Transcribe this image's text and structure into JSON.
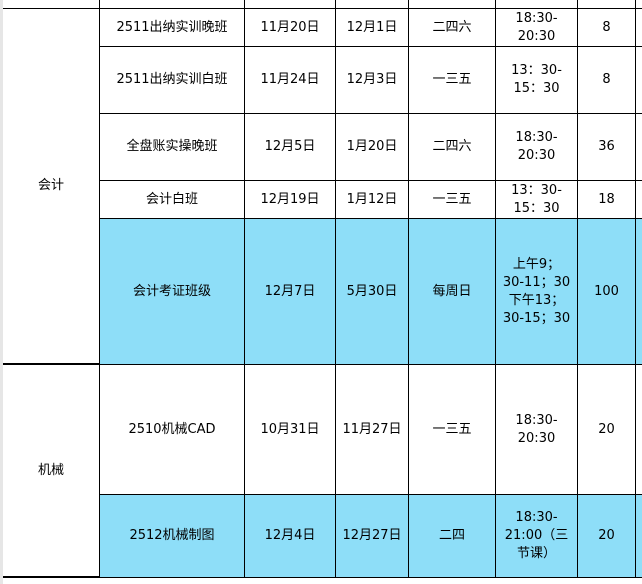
{
  "highlight_color": "#8edef8",
  "groups": [
    {
      "category": "会计",
      "rows": [
        {
          "name": "2511出纳实训晚班",
          "start": "11月20日",
          "end": "12月1日",
          "days": "二四六",
          "time": "18:30-\n20:30",
          "count": "8",
          "highlight": false
        },
        {
          "name": "2511出纳实训白班",
          "start": "11月24日",
          "end": "12月3日",
          "days": "一三五",
          "time": "13：30-\n15：30",
          "count": "8",
          "highlight": false
        },
        {
          "name": "全盘账实操晚班",
          "start": "12月5日",
          "end": "1月20日",
          "days": "二四六",
          "time": "18:30-\n20:30",
          "count": "36",
          "highlight": false
        },
        {
          "name": "会计白班",
          "start": "12月19日",
          "end": "1月12日",
          "days": "一三五",
          "time": "13：30-\n15：30",
          "count": "18",
          "highlight": false
        },
        {
          "name": "会计考证班级",
          "start": "12月7日",
          "end": "5月30日",
          "days": "每周日",
          "time": "上午9；\n30-11；30\n下午13；\n30-15；30",
          "count": "100",
          "highlight": true
        }
      ]
    },
    {
      "category": "机械",
      "rows": [
        {
          "name": "2510机械CAD",
          "start": "10月31日",
          "end": "11月27日",
          "days": "一三五",
          "time": "18:30-\n20:30",
          "count": "20",
          "highlight": false
        },
        {
          "name": "2512机械制图",
          "start": "12月4日",
          "end": "12月27日",
          "days": "二四",
          "time": "18:30-\n21:00（三\n节课）",
          "count": "20",
          "highlight": true
        }
      ]
    }
  ]
}
